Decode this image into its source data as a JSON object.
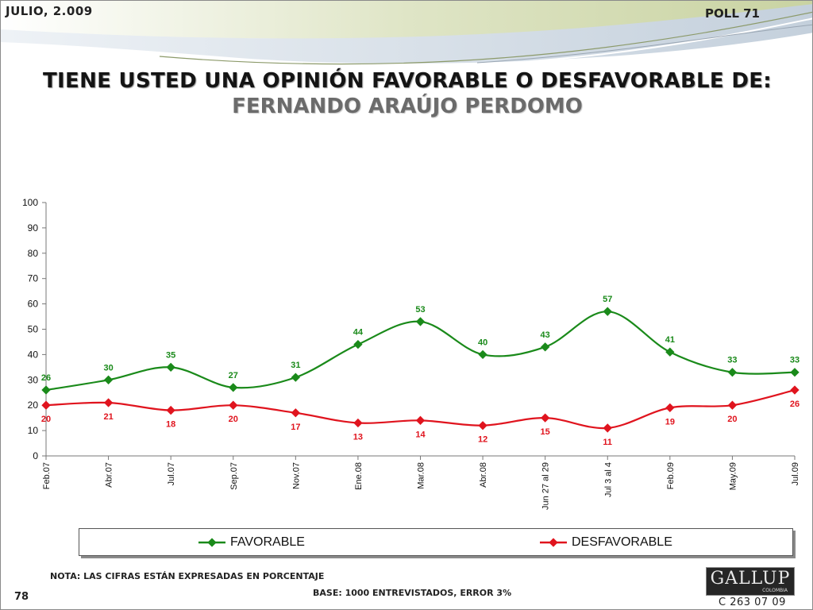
{
  "header": {
    "date": "JULIO, 2.009",
    "poll": "POLL 71"
  },
  "footer": {
    "note": "NOTA: LAS CIFRAS ESTÁN EXPRESADAS EN PORCENTAJE",
    "base": "BASE: 1000 ENTREVISTADOS, ERROR 3%",
    "page": "78",
    "logo_text": "GALLUP",
    "logo_sub": "COLOMBIA",
    "code": "C 263 07 09"
  },
  "chart_data": {
    "type": "line",
    "title": "TIENE USTED UNA OPINIÓN FAVORABLE O DESFAVORABLE DE:",
    "subtitle": "FERNANDO ARAÚJO PERDOMO",
    "categories": [
      "Feb.07",
      "Abr.07",
      "Jul.07",
      "Sep.07",
      "Nov.07",
      "Ene.08",
      "Mar.08",
      "Abr.08",
      "Jun 27 al 29",
      "Jul 3 al 4",
      "Feb.09",
      "May.09",
      "Jul.09"
    ],
    "ylim": [
      0,
      100
    ],
    "yticks": [
      0,
      10,
      20,
      30,
      40,
      50,
      60,
      70,
      80,
      90,
      100
    ],
    "grid": false,
    "legend_position": "bottom",
    "series": [
      {
        "name": "FAVORABLE",
        "color": "#1a8a1a",
        "values": [
          26,
          30,
          35,
          27,
          31,
          44,
          53,
          40,
          43,
          57,
          41,
          33,
          33
        ]
      },
      {
        "name": "DESFAVORABLE",
        "color": "#e0141e",
        "values": [
          20,
          21,
          18,
          20,
          17,
          13,
          14,
          12,
          15,
          11,
          19,
          20,
          26
        ]
      }
    ]
  }
}
